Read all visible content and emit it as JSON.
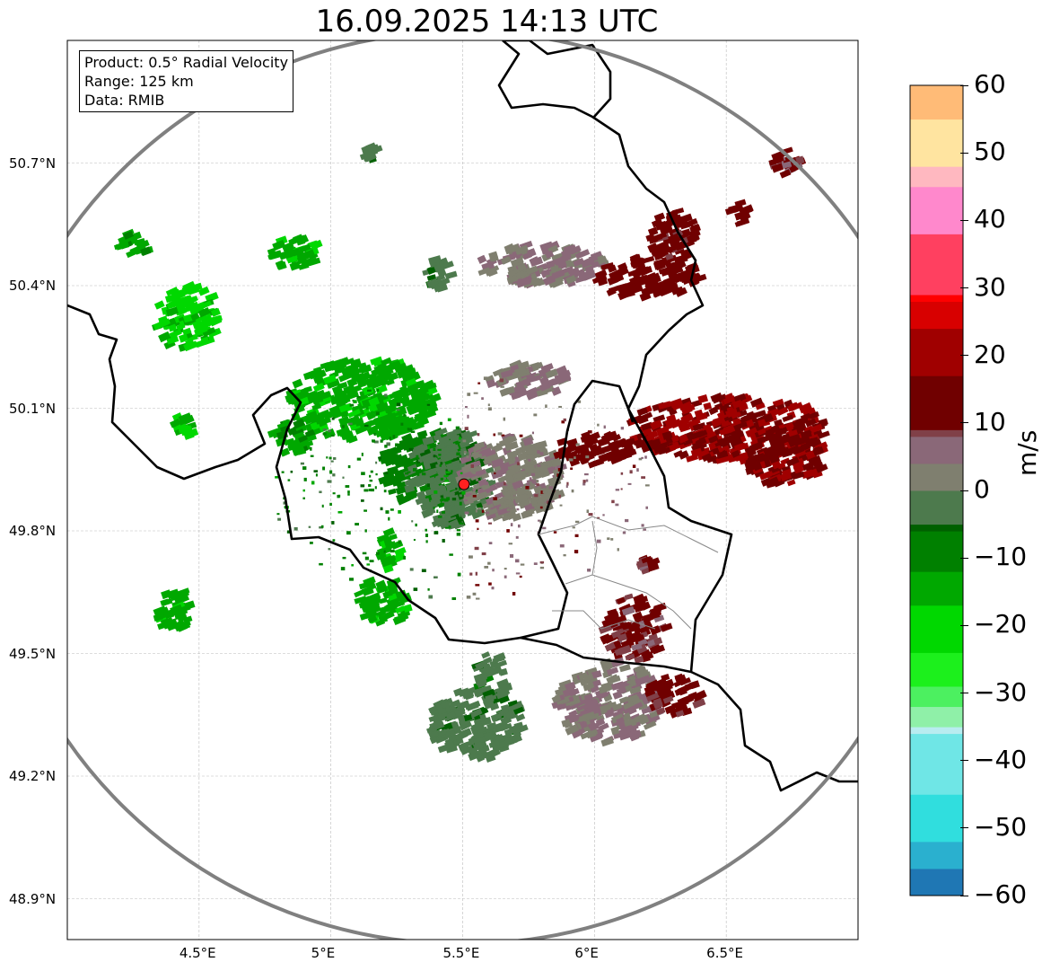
{
  "chart_data": {
    "type": "heatmap",
    "title": "16.09.2025 14:13 UTC",
    "info_box": [
      "Product: 0.5° Radial Velocity",
      "Range: 125 km",
      "Data: RMIB"
    ],
    "xlim": [
      4.0,
      7.0
    ],
    "ylim": [
      48.8,
      51.0
    ],
    "x_ticks": [
      {
        "value": 4.5,
        "label": "4.5°E"
      },
      {
        "value": 5.0,
        "label": "5°E"
      },
      {
        "value": 5.5,
        "label": "5.5°E"
      },
      {
        "value": 6.0,
        "label": "6°E"
      },
      {
        "value": 6.5,
        "label": "6.5°E"
      }
    ],
    "y_ticks": [
      {
        "value": 50.7,
        "label": "50.7°N"
      },
      {
        "value": 50.4,
        "label": "50.4°N"
      },
      {
        "value": 50.1,
        "label": "50.1°N"
      },
      {
        "value": 49.8,
        "label": "49.8°N"
      },
      {
        "value": 49.5,
        "label": "49.5°N"
      },
      {
        "value": 49.2,
        "label": "49.2°N"
      },
      {
        "value": 48.9,
        "label": "48.9°N"
      }
    ],
    "grid": true,
    "radar_site": {
      "lon": 5.505,
      "lat": 49.914,
      "range_km": 125
    },
    "colorbar": {
      "label": "m/s",
      "range": [
        -60,
        60
      ],
      "ticks": [
        {
          "value": 60,
          "label": "60"
        },
        {
          "value": 50,
          "label": "50"
        },
        {
          "value": 40,
          "label": "40"
        },
        {
          "value": 30,
          "label": "30"
        },
        {
          "value": 20,
          "label": "20"
        },
        {
          "value": 10,
          "label": "10"
        },
        {
          "value": 0,
          "label": "0"
        },
        {
          "value": -10,
          "label": "−10"
        },
        {
          "value": -20,
          "label": "−20"
        },
        {
          "value": -30,
          "label": "−30"
        },
        {
          "value": -40,
          "label": "−40"
        },
        {
          "value": -50,
          "label": "−50"
        },
        {
          "value": -60,
          "label": "−60"
        }
      ],
      "stops": [
        {
          "v": -60,
          "c": "#1f77b4"
        },
        {
          "v": -56,
          "c": "#2ab0cf"
        },
        {
          "v": -52,
          "c": "#30dede"
        },
        {
          "v": -45,
          "c": "#6fe6e6"
        },
        {
          "v": -36,
          "c": "#b8ecf0"
        },
        {
          "v": -35,
          "c": "#8ff0a8"
        },
        {
          "v": -32,
          "c": "#4cf060"
        },
        {
          "v": -29,
          "c": "#1cf01c"
        },
        {
          "v": -24,
          "c": "#00d800"
        },
        {
          "v": -17,
          "c": "#00a800"
        },
        {
          "v": -12,
          "c": "#008000"
        },
        {
          "v": -6,
          "c": "#006000"
        },
        {
          "v": -5,
          "c": "#4d7a4d"
        },
        {
          "v": 0,
          "c": "#7f7f6f"
        },
        {
          "v": 4,
          "c": "#8a6878"
        },
        {
          "v": 8,
          "c": "#804048"
        },
        {
          "v": 9,
          "c": "#700000"
        },
        {
          "v": 17,
          "c": "#a00000"
        },
        {
          "v": 24,
          "c": "#d80000"
        },
        {
          "v": 28,
          "c": "#ff0000"
        },
        {
          "v": 29,
          "c": "#ff4060"
        },
        {
          "v": 38,
          "c": "#ff88cc"
        },
        {
          "v": 45,
          "c": "#ffb8c0"
        },
        {
          "v": 48,
          "c": "#ffe4a0"
        },
        {
          "v": 55,
          "c": "#ffbb77"
        },
        {
          "v": 60,
          "c": "#ff9955"
        }
      ]
    },
    "echoes": [
      {
        "lon": 4.45,
        "lat": 50.32,
        "rlon": 0.12,
        "rlat": 0.08,
        "v": -18
      },
      {
        "lon": 4.25,
        "lat": 50.5,
        "rlon": 0.06,
        "rlat": 0.03,
        "v": -14
      },
      {
        "lon": 4.86,
        "lat": 50.48,
        "rlon": 0.09,
        "rlat": 0.04,
        "v": -15
      },
      {
        "lon": 5.12,
        "lat": 50.12,
        "rlon": 0.28,
        "rlat": 0.1,
        "v": -15
      },
      {
        "lon": 4.85,
        "lat": 50.03,
        "rlon": 0.08,
        "rlat": 0.04,
        "v": -13
      },
      {
        "lon": 5.36,
        "lat": 49.95,
        "rlon": 0.18,
        "rlat": 0.09,
        "v": -9
      },
      {
        "lon": 5.45,
        "lat": 49.93,
        "rlon": 0.16,
        "rlat": 0.12,
        "v": -3
      },
      {
        "lon": 5.68,
        "lat": 49.93,
        "rlon": 0.2,
        "rlat": 0.1,
        "v": 3
      },
      {
        "lon": 5.8,
        "lat": 50.45,
        "rlon": 0.25,
        "rlat": 0.05,
        "v": 4
      },
      {
        "lon": 5.75,
        "lat": 50.17,
        "rlon": 0.15,
        "rlat": 0.04,
        "v": 4
      },
      {
        "lon": 5.4,
        "lat": 50.43,
        "rlon": 0.05,
        "rlat": 0.04,
        "v": -3
      },
      {
        "lon": 6.2,
        "lat": 50.42,
        "rlon": 0.2,
        "rlat": 0.05,
        "v": 12
      },
      {
        "lon": 6.3,
        "lat": 50.52,
        "rlon": 0.1,
        "rlat": 0.06,
        "v": 11
      },
      {
        "lon": 6.5,
        "lat": 50.05,
        "rlon": 0.38,
        "rlat": 0.08,
        "v": 17
      },
      {
        "lon": 6.72,
        "lat": 49.98,
        "rlon": 0.15,
        "rlat": 0.07,
        "v": 16
      },
      {
        "lon": 6.0,
        "lat": 50.0,
        "rlon": 0.15,
        "rlat": 0.04,
        "v": 14
      },
      {
        "lon": 5.2,
        "lat": 49.63,
        "rlon": 0.1,
        "rlat": 0.06,
        "v": -15
      },
      {
        "lon": 5.22,
        "lat": 49.75,
        "rlon": 0.04,
        "rlat": 0.05,
        "v": -16
      },
      {
        "lon": 4.4,
        "lat": 49.6,
        "rlon": 0.06,
        "rlat": 0.06,
        "v": -15
      },
      {
        "lon": 4.44,
        "lat": 50.06,
        "rlon": 0.04,
        "rlat": 0.03,
        "v": -16
      },
      {
        "lon": 6.05,
        "lat": 49.38,
        "rlon": 0.2,
        "rlat": 0.1,
        "v": 4
      },
      {
        "lon": 6.15,
        "lat": 49.56,
        "rlon": 0.12,
        "rlat": 0.08,
        "v": 10
      },
      {
        "lon": 6.3,
        "lat": 49.4,
        "rlon": 0.1,
        "rlat": 0.05,
        "v": 11
      },
      {
        "lon": 5.55,
        "lat": 49.33,
        "rlon": 0.18,
        "rlat": 0.09,
        "v": -3
      },
      {
        "lon": 5.6,
        "lat": 49.44,
        "rlon": 0.06,
        "rlat": 0.06,
        "v": -4
      },
      {
        "lon": 6.72,
        "lat": 50.7,
        "rlon": 0.06,
        "rlat": 0.03,
        "v": 10
      },
      {
        "lon": 6.55,
        "lat": 50.58,
        "rlon": 0.04,
        "rlat": 0.03,
        "v": 12
      },
      {
        "lon": 5.15,
        "lat": 50.72,
        "rlon": 0.03,
        "rlat": 0.02,
        "v": -3
      },
      {
        "lon": 6.2,
        "lat": 49.72,
        "rlon": 0.03,
        "rlat": 0.02,
        "v": 10
      }
    ]
  }
}
